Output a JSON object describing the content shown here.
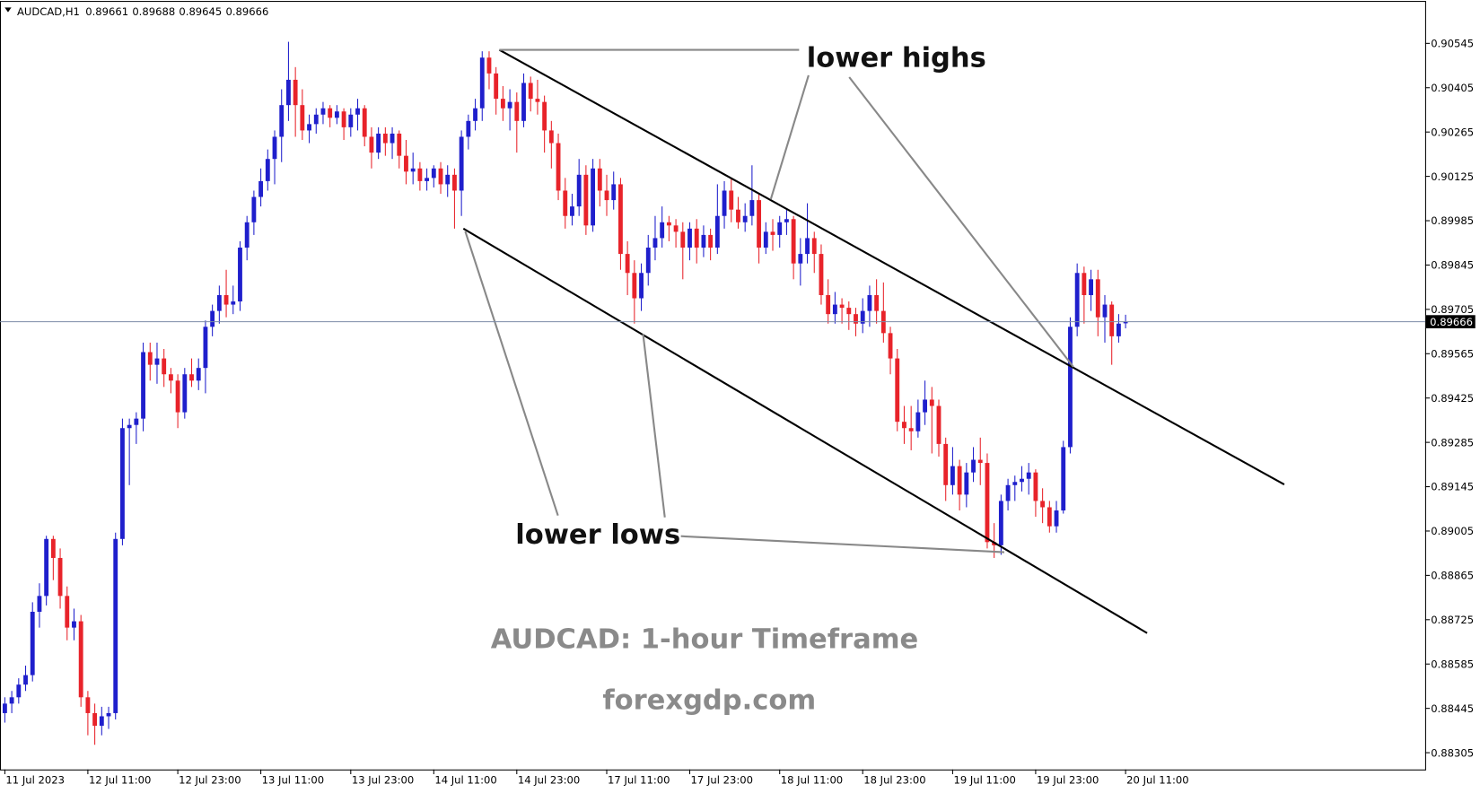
{
  "chart_data": {
    "type": "candlestick",
    "symbol": "AUDCAD,H1",
    "up_color": "#1f1fcc",
    "down_color": "#e8232a",
    "price_line_color": "#7d8ca8",
    "xlim": [
      -0.7,
      205.3
    ],
    "ylim": [
      0.88252,
      0.90676
    ],
    "yticks": [
      0.90545,
      0.90405,
      0.90265,
      0.90125,
      0.89985,
      0.89845,
      0.89705,
      0.89565,
      0.89425,
      0.89285,
      0.89145,
      0.89005,
      0.88865,
      0.88725,
      0.88585,
      0.88445,
      0.88305
    ],
    "xticks": [
      {
        "value": 0,
        "label": "11 Jul 2023"
      },
      {
        "value": 12,
        "label": "12 Jul 11:00"
      },
      {
        "value": 25,
        "label": "12 Jul 23:00"
      },
      {
        "value": 37,
        "label": "13 Jul 11:00"
      },
      {
        "value": 50,
        "label": "13 Jul 23:00"
      },
      {
        "value": 62,
        "label": "14 Jul 11:00"
      },
      {
        "value": 74,
        "label": "14 Jul 23:00"
      },
      {
        "value": 87,
        "label": "17 Jul 11:00"
      },
      {
        "value": 99,
        "label": "17 Jul 23:00"
      },
      {
        "value": 112,
        "label": "18 Jul 11:00"
      },
      {
        "value": 124,
        "label": "18 Jul 23:00"
      },
      {
        "value": 137,
        "label": "19 Jul 11:00"
      },
      {
        "value": 149,
        "label": "19 Jul 23:00"
      },
      {
        "value": 162,
        "label": "20 Jul 11:00"
      }
    ],
    "annotations": [
      "lower highs",
      "lower lows"
    ],
    "title": "AUDCAD: 1-hour Timeframe",
    "watermark": "forexgdp.com",
    "candles": [
      [
        0.8843,
        0.8848,
        0.884,
        0.8846
      ],
      [
        0.8846,
        0.885,
        0.8843,
        0.8848
      ],
      [
        0.8848,
        0.8854,
        0.8846,
        0.8852
      ],
      [
        0.8852,
        0.8858,
        0.885,
        0.8855
      ],
      [
        0.8855,
        0.8878,
        0.8853,
        0.8875
      ],
      [
        0.8875,
        0.8884,
        0.887,
        0.888
      ],
      [
        0.888,
        0.8899,
        0.8877,
        0.8898
      ],
      [
        0.8898,
        0.8899,
        0.8885,
        0.8892
      ],
      [
        0.8892,
        0.8895,
        0.8876,
        0.888
      ],
      [
        0.888,
        0.8883,
        0.8866,
        0.887
      ],
      [
        0.887,
        0.8876,
        0.8866,
        0.8872
      ],
      [
        0.8872,
        0.8874,
        0.8845,
        0.8848
      ],
      [
        0.8848,
        0.885,
        0.8836,
        0.8843
      ],
      [
        0.8843,
        0.8846,
        0.8833,
        0.8839
      ],
      [
        0.8839,
        0.8845,
        0.8836,
        0.8842
      ],
      [
        0.8842,
        0.8845,
        0.8838,
        0.8843
      ],
      [
        0.8843,
        0.89,
        0.8841,
        0.8898
      ],
      [
        0.8898,
        0.8936,
        0.8896,
        0.8933
      ],
      [
        0.8933,
        0.8936,
        0.8915,
        0.8934
      ],
      [
        0.8934,
        0.8938,
        0.8928,
        0.8936
      ],
      [
        0.8936,
        0.896,
        0.8932,
        0.8957
      ],
      [
        0.8957,
        0.896,
        0.8948,
        0.8953
      ],
      [
        0.8953,
        0.896,
        0.8947,
        0.8955
      ],
      [
        0.8955,
        0.8958,
        0.8946,
        0.895
      ],
      [
        0.895,
        0.8952,
        0.8944,
        0.8948
      ],
      [
        0.8948,
        0.895,
        0.8933,
        0.8938
      ],
      [
        0.8938,
        0.8952,
        0.8936,
        0.895
      ],
      [
        0.895,
        0.8955,
        0.8946,
        0.8948
      ],
      [
        0.8948,
        0.8955,
        0.8945,
        0.8952
      ],
      [
        0.8952,
        0.8967,
        0.8944,
        0.8965
      ],
      [
        0.8965,
        0.8972,
        0.8962,
        0.897
      ],
      [
        0.897,
        0.8978,
        0.8966,
        0.8975
      ],
      [
        0.8975,
        0.8983,
        0.8968,
        0.8972
      ],
      [
        0.8972,
        0.8978,
        0.8969,
        0.8973
      ],
      [
        0.8973,
        0.8992,
        0.897,
        0.899
      ],
      [
        0.899,
        0.9,
        0.8986,
        0.8998
      ],
      [
        0.8998,
        0.9008,
        0.8994,
        0.9006
      ],
      [
        0.9006,
        0.9015,
        0.9003,
        0.9011
      ],
      [
        0.9011,
        0.9021,
        0.9008,
        0.9018
      ],
      [
        0.9018,
        0.9027,
        0.901,
        0.9025
      ],
      [
        0.9025,
        0.904,
        0.9017,
        0.9035
      ],
      [
        0.9035,
        0.9055,
        0.903,
        0.9043
      ],
      [
        0.9043,
        0.9047,
        0.9025,
        0.9035
      ],
      [
        0.9035,
        0.904,
        0.9024,
        0.9027
      ],
      [
        0.9027,
        0.9032,
        0.9023,
        0.9029
      ],
      [
        0.9029,
        0.9034,
        0.9026,
        0.9032
      ],
      [
        0.9032,
        0.9036,
        0.9029,
        0.9034
      ],
      [
        0.9034,
        0.9035,
        0.9028,
        0.9031
      ],
      [
        0.9031,
        0.9035,
        0.9029,
        0.9033
      ],
      [
        0.9033,
        0.9034,
        0.9024,
        0.9028
      ],
      [
        0.9028,
        0.9034,
        0.9025,
        0.9032
      ],
      [
        0.9032,
        0.9037,
        0.9027,
        0.9034
      ],
      [
        0.9034,
        0.9035,
        0.9022,
        0.9025
      ],
      [
        0.9025,
        0.9028,
        0.9015,
        0.902
      ],
      [
        0.902,
        0.9028,
        0.9018,
        0.9026
      ],
      [
        0.9026,
        0.9028,
        0.9019,
        0.9023
      ],
      [
        0.9023,
        0.9028,
        0.9018,
        0.9026
      ],
      [
        0.9026,
        0.9027,
        0.9015,
        0.9019
      ],
      [
        0.9019,
        0.9024,
        0.901,
        0.9014
      ],
      [
        0.9014,
        0.902,
        0.901,
        0.9015
      ],
      [
        0.9015,
        0.9017,
        0.9008,
        0.9011
      ],
      [
        0.9011,
        0.9015,
        0.9008,
        0.9012
      ],
      [
        0.9012,
        0.9016,
        0.9009,
        0.9015
      ],
      [
        0.9015,
        0.9017,
        0.9007,
        0.901
      ],
      [
        0.901,
        0.9016,
        0.9006,
        0.9013
      ],
      [
        0.9013,
        0.9015,
        0.8996,
        0.9008
      ],
      [
        0.9008,
        0.9027,
        0.9,
        0.9025
      ],
      [
        0.9025,
        0.9032,
        0.9021,
        0.903
      ],
      [
        0.903,
        0.9037,
        0.9027,
        0.9034
      ],
      [
        0.9034,
        0.9052,
        0.903,
        0.905
      ],
      [
        0.905,
        0.9052,
        0.904,
        0.9045
      ],
      [
        0.9045,
        0.9047,
        0.9032,
        0.9037
      ],
      [
        0.9037,
        0.9041,
        0.903,
        0.9034
      ],
      [
        0.9034,
        0.904,
        0.9027,
        0.9036
      ],
      [
        0.9036,
        0.9039,
        0.902,
        0.903
      ],
      [
        0.903,
        0.9045,
        0.9028,
        0.9042
      ],
      [
        0.9042,
        0.9044,
        0.9033,
        0.9037
      ],
      [
        0.9037,
        0.9043,
        0.9032,
        0.9036
      ],
      [
        0.9036,
        0.9038,
        0.902,
        0.9027
      ],
      [
        0.9027,
        0.903,
        0.9015,
        0.9023
      ],
      [
        0.9023,
        0.9026,
        0.9005,
        0.9008
      ],
      [
        0.9008,
        0.9012,
        0.8996,
        0.9
      ],
      [
        0.9,
        0.9007,
        0.8997,
        0.9003
      ],
      [
        0.9003,
        0.9018,
        0.9,
        0.9013
      ],
      [
        0.9013,
        0.9016,
        0.8994,
        0.8997
      ],
      [
        0.8997,
        0.9018,
        0.8995,
        0.9015
      ],
      [
        0.9015,
        0.9018,
        0.9003,
        0.9008
      ],
      [
        0.9008,
        0.9013,
        0.9,
        0.9005
      ],
      [
        0.9005,
        0.9014,
        0.9002,
        0.901
      ],
      [
        0.901,
        0.9012,
        0.8983,
        0.8988
      ],
      [
        0.8988,
        0.8992,
        0.8975,
        0.8982
      ],
      [
        0.8982,
        0.8986,
        0.8966,
        0.8974
      ],
      [
        0.8974,
        0.8985,
        0.897,
        0.8982
      ],
      [
        0.8982,
        0.8994,
        0.8978,
        0.899
      ],
      [
        0.899,
        0.9,
        0.8986,
        0.8993
      ],
      [
        0.8993,
        0.9003,
        0.899,
        0.8998
      ],
      [
        0.8998,
        0.9,
        0.8992,
        0.8997
      ],
      [
        0.8997,
        0.8999,
        0.899,
        0.8995
      ],
      [
        0.8995,
        0.8998,
        0.898,
        0.899
      ],
      [
        0.899,
        0.8998,
        0.8986,
        0.8996
      ],
      [
        0.8996,
        0.8999,
        0.8985,
        0.899
      ],
      [
        0.899,
        0.8997,
        0.8987,
        0.8994
      ],
      [
        0.8994,
        0.8996,
        0.8986,
        0.899
      ],
      [
        0.899,
        0.901,
        0.8988,
        0.9
      ],
      [
        0.9,
        0.9011,
        0.8996,
        0.9008
      ],
      [
        0.9008,
        0.9012,
        0.8998,
        0.9002
      ],
      [
        0.9002,
        0.9006,
        0.8996,
        0.8998
      ],
      [
        0.8998,
        0.9004,
        0.8995,
        0.9
      ],
      [
        0.9,
        0.9016,
        0.8997,
        0.9005
      ],
      [
        0.9005,
        0.9007,
        0.8985,
        0.899
      ],
      [
        0.899,
        0.8998,
        0.8988,
        0.8995
      ],
      [
        0.8995,
        0.8999,
        0.8989,
        0.8994
      ],
      [
        0.8994,
        0.9,
        0.899,
        0.8998
      ],
      [
        0.8998,
        0.9002,
        0.8994,
        0.8999
      ],
      [
        0.8999,
        0.9,
        0.898,
        0.8985
      ],
      [
        0.8985,
        0.8993,
        0.8978,
        0.8988
      ],
      [
        0.8988,
        0.9004,
        0.8985,
        0.8993
      ],
      [
        0.8993,
        0.8995,
        0.8982,
        0.8988
      ],
      [
        0.8988,
        0.8991,
        0.8972,
        0.8975
      ],
      [
        0.8975,
        0.898,
        0.8966,
        0.8969
      ],
      [
        0.8969,
        0.8976,
        0.8966,
        0.8972
      ],
      [
        0.8972,
        0.8974,
        0.8966,
        0.8971
      ],
      [
        0.8971,
        0.8973,
        0.8964,
        0.8969
      ],
      [
        0.8969,
        0.8971,
        0.8962,
        0.8966
      ],
      [
        0.8966,
        0.8974,
        0.8963,
        0.897
      ],
      [
        0.897,
        0.8978,
        0.8965,
        0.8975
      ],
      [
        0.8975,
        0.898,
        0.8966,
        0.897
      ],
      [
        0.897,
        0.8979,
        0.896,
        0.8963
      ],
      [
        0.8963,
        0.8965,
        0.895,
        0.8955
      ],
      [
        0.8955,
        0.8958,
        0.8932,
        0.8935
      ],
      [
        0.8935,
        0.894,
        0.8928,
        0.8933
      ],
      [
        0.8933,
        0.894,
        0.8926,
        0.8932
      ],
      [
        0.8932,
        0.8942,
        0.893,
        0.8938
      ],
      [
        0.8938,
        0.8948,
        0.8934,
        0.8942
      ],
      [
        0.8942,
        0.8946,
        0.8925,
        0.894
      ],
      [
        0.894,
        0.8942,
        0.8924,
        0.8928
      ],
      [
        0.8928,
        0.893,
        0.891,
        0.8915
      ],
      [
        0.8915,
        0.8927,
        0.8912,
        0.8921
      ],
      [
        0.8921,
        0.8923,
        0.8907,
        0.8912
      ],
      [
        0.8912,
        0.8922,
        0.8908,
        0.8919
      ],
      [
        0.8919,
        0.8927,
        0.8916,
        0.8923
      ],
      [
        0.8923,
        0.893,
        0.8915,
        0.8922
      ],
      [
        0.8922,
        0.8925,
        0.8895,
        0.8897
      ],
      [
        0.8897,
        0.8903,
        0.8892,
        0.8896
      ],
      [
        0.8896,
        0.8912,
        0.8893,
        0.891
      ],
      [
        0.891,
        0.8917,
        0.8907,
        0.8915
      ],
      [
        0.8915,
        0.8918,
        0.891,
        0.8916
      ],
      [
        0.8916,
        0.8921,
        0.8913,
        0.8917
      ],
      [
        0.8917,
        0.8922,
        0.8912,
        0.8919
      ],
      [
        0.8919,
        0.892,
        0.8905,
        0.891
      ],
      [
        0.891,
        0.8914,
        0.8903,
        0.8908
      ],
      [
        0.8908,
        0.891,
        0.89,
        0.8902
      ],
      [
        0.8902,
        0.891,
        0.89,
        0.8907
      ],
      [
        0.8907,
        0.8929,
        0.8906,
        0.8927
      ],
      [
        0.8927,
        0.8968,
        0.8925,
        0.8965
      ],
      [
        0.8965,
        0.8985,
        0.8962,
        0.8982
      ],
      [
        0.8982,
        0.8984,
        0.8966,
        0.8975
      ],
      [
        0.8975,
        0.8983,
        0.897,
        0.898
      ],
      [
        0.898,
        0.8983,
        0.8962,
        0.8968
      ],
      [
        0.8968,
        0.8975,
        0.896,
        0.8972
      ],
      [
        0.8972,
        0.8973,
        0.8953,
        0.8962
      ],
      [
        0.8962,
        0.8969,
        0.896,
        0.8966
      ],
      [
        0.89661,
        0.89688,
        0.89645,
        0.89666
      ]
    ]
  }
}
